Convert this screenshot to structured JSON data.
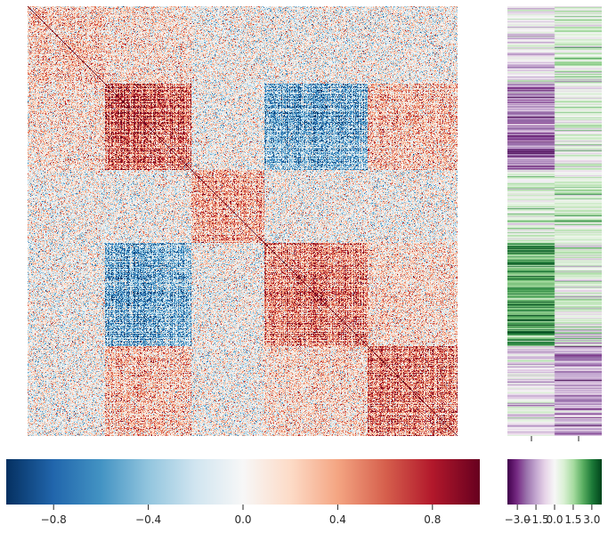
{
  "chart_data": [
    {
      "type": "heatmap",
      "name": "correlation-matrix",
      "title": "",
      "xlabel": "",
      "ylabel": "",
      "n_items": 500,
      "clusters": [
        {
          "range": [
            0,
            90
          ],
          "within_corr": 0.2
        },
        {
          "range": [
            90,
            190
          ],
          "within_corr": 0.55
        },
        {
          "range": [
            190,
            275
          ],
          "within_corr": 0.3
        },
        {
          "range": [
            275,
            395
          ],
          "within_corr": 0.45
        },
        {
          "range": [
            395,
            500
          ],
          "within_corr": 0.45
        }
      ],
      "between_cluster_corr": [
        {
          "a": 1,
          "b": 3,
          "corr": -0.45
        },
        {
          "a": 1,
          "b": 4,
          "corr": 0.25
        },
        {
          "a": 3,
          "b": 4,
          "corr": 0.15
        },
        {
          "a": 0,
          "b": 1,
          "corr": 0.12
        }
      ],
      "diagonal": 1.0,
      "colormap": "RdBu_r",
      "vmin": -1.0,
      "vmax": 1.0,
      "colorbar": {
        "orientation": "horizontal",
        "tick_values": [
          -0.8,
          -0.4,
          0.0,
          0.4,
          0.8
        ],
        "tick_labels": [
          "−0.8",
          "−0.4",
          "0.0",
          "0.4",
          "0.8"
        ]
      }
    },
    {
      "type": "heatmap",
      "name": "row-annotations",
      "title": "",
      "xlabel": "",
      "ylabel": "",
      "columns": 2,
      "colormap": "PRGn",
      "vmin": -3.8,
      "vmax": 3.8,
      "column_means_by_cluster": [
        [
          -0.3,
          0.6
        ],
        [
          -2.2,
          0.4
        ],
        [
          0.5,
          0.6
        ],
        [
          2.4,
          0.4
        ],
        [
          -0.4,
          -1.6
        ]
      ],
      "colorbar": {
        "orientation": "horizontal",
        "tick_values": [
          -3.0,
          -1.5,
          0.0,
          1.5,
          3.0
        ],
        "tick_labels": [
          "−3.0",
          "−1.5",
          "0.0",
          "1.5",
          "3.0"
        ]
      }
    }
  ]
}
